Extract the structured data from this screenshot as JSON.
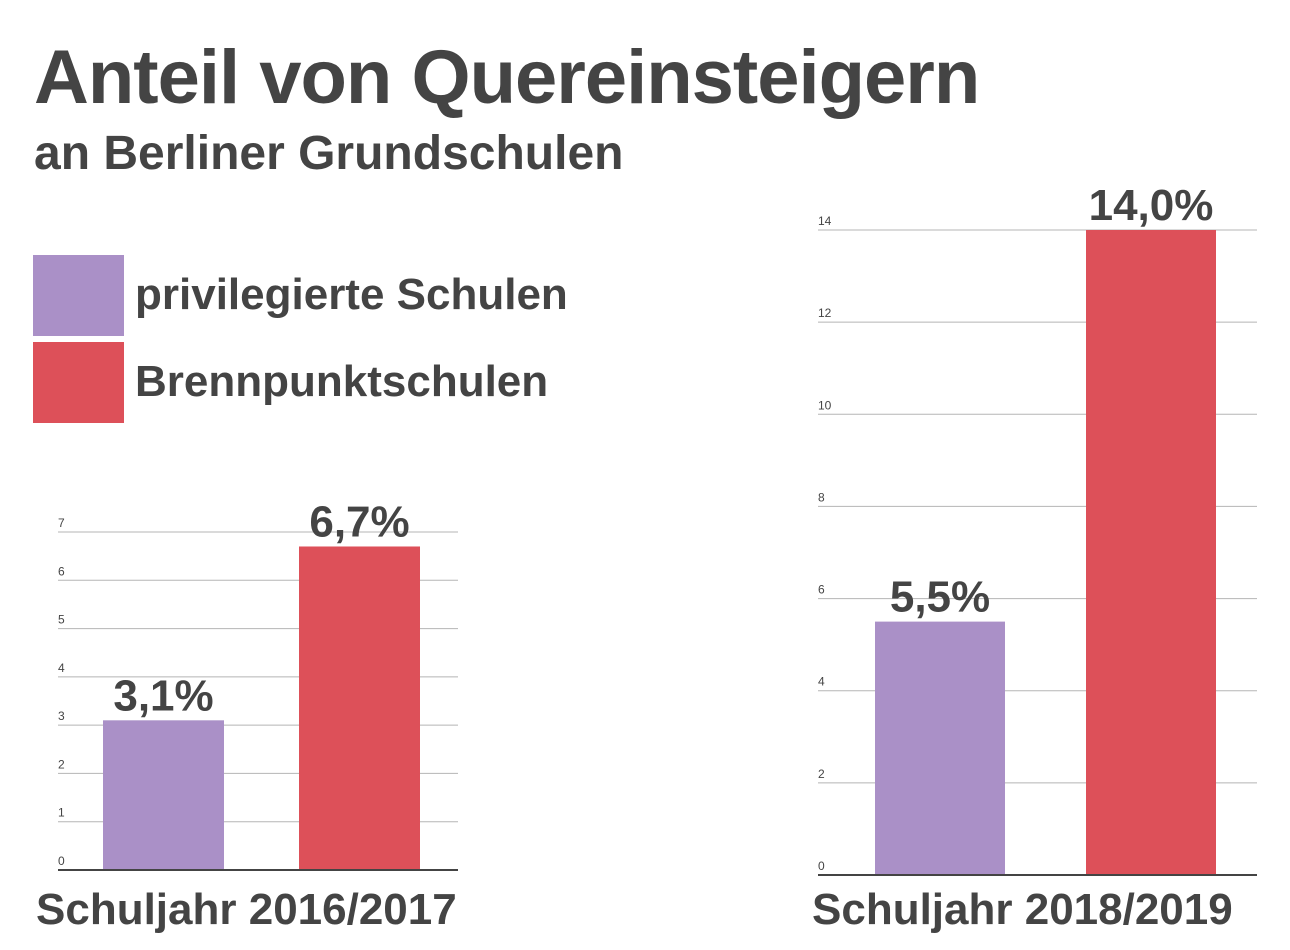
{
  "title": "Anteil von Quereinsteigern",
  "subtitle": "an Berliner Grundschulen",
  "legend": [
    {
      "label": "privilegierte Schulen",
      "color": "#aa90c7"
    },
    {
      "label": "Brennpunktschulen",
      "color": "#dd5059"
    }
  ],
  "chart_data": [
    {
      "type": "bar",
      "xlabel": "Schuljahr 2016/2017",
      "categories": [
        "privilegierte Schulen",
        "Brennpunktschulen"
      ],
      "values": [
        3.1,
        6.7
      ],
      "value_labels": [
        "3,1%",
        "6,7%"
      ],
      "colors": [
        "#aa90c7",
        "#dd5059"
      ],
      "ylim": [
        0,
        7
      ],
      "yticks": [
        0,
        1,
        2,
        3,
        4,
        5,
        6,
        7
      ],
      "grid": true
    },
    {
      "type": "bar",
      "xlabel": "Schuljahr 2018/2019",
      "categories": [
        "privilegierte Schulen",
        "Brennpunktschulen"
      ],
      "values": [
        5.5,
        14.0
      ],
      "value_labels": [
        "5,5%",
        "14,0%"
      ],
      "colors": [
        "#aa90c7",
        "#dd5059"
      ],
      "ylim": [
        0,
        14
      ],
      "yticks": [
        0,
        2,
        4,
        6,
        8,
        10,
        12,
        14
      ],
      "grid": true
    }
  ]
}
